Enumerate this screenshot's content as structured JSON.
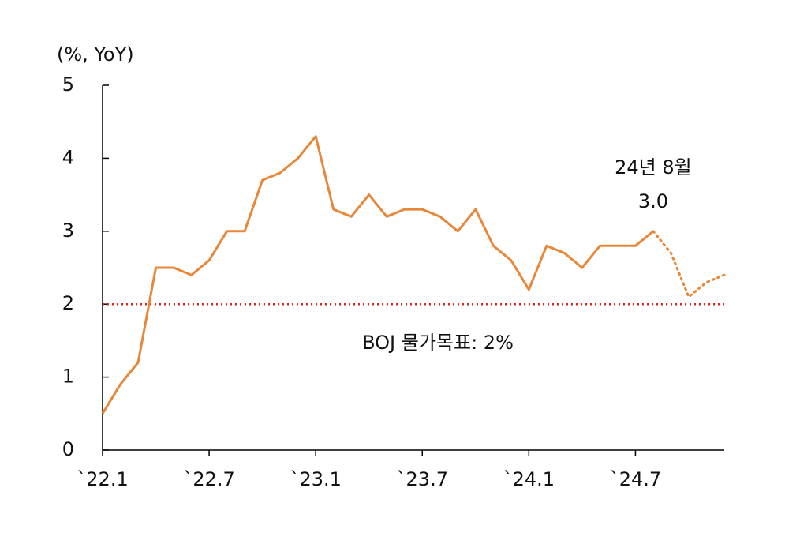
{
  "chart_data": {
    "type": "line",
    "y_label": "(%, YoY)",
    "categories": [
      "`22.1",
      null,
      null,
      null,
      null,
      null,
      "`22.7",
      null,
      null,
      null,
      null,
      null,
      "`23.1",
      null,
      null,
      null,
      null,
      null,
      "`23.7",
      null,
      null,
      null,
      null,
      null,
      "`24.1",
      null,
      null,
      null,
      null,
      null,
      "`24.7",
      null,
      null,
      null,
      null,
      null
    ],
    "series": [
      {
        "color": "#e8873a",
        "style": "solid",
        "values": [
          0.5,
          0.9,
          1.2,
          2.5,
          2.5,
          2.4,
          2.6,
          3.0,
          3.0,
          3.7,
          3.8,
          4.0,
          4.3,
          3.3,
          3.2,
          3.5,
          3.2,
          3.3,
          3.3,
          3.2,
          3.0,
          3.3,
          2.8,
          2.6,
          2.2,
          2.8,
          2.7,
          2.5,
          2.8,
          2.8,
          2.8,
          3.0,
          null,
          null,
          null,
          null
        ],
        "value_labels": [
          null,
          null,
          null,
          null,
          null,
          null,
          null,
          null,
          null,
          null,
          null,
          null,
          null,
          null,
          null,
          null,
          null,
          null,
          null,
          null,
          null,
          null,
          null,
          null,
          null,
          null,
          null,
          null,
          null,
          null,
          null,
          "3.0",
          null,
          null,
          null,
          null
        ]
      },
      {
        "color": "#e8873a",
        "style": "dotted",
        "values": [
          null,
          null,
          null,
          null,
          null,
          null,
          null,
          null,
          null,
          null,
          null,
          null,
          null,
          null,
          null,
          null,
          null,
          null,
          null,
          null,
          null,
          null,
          null,
          null,
          null,
          null,
          null,
          null,
          null,
          null,
          null,
          3.0,
          2.7,
          2.1,
          2.3,
          2.4
        ]
      }
    ],
    "annotation": "24년 8월",
    "reference_line": {
      "value": 2,
      "label": "BOJ 물가목표: 2%",
      "color": "#e0211d"
    },
    "ylim": [
      0,
      5
    ],
    "yticks": [
      0,
      1,
      2,
      3,
      4,
      5
    ],
    "grid": false
  }
}
